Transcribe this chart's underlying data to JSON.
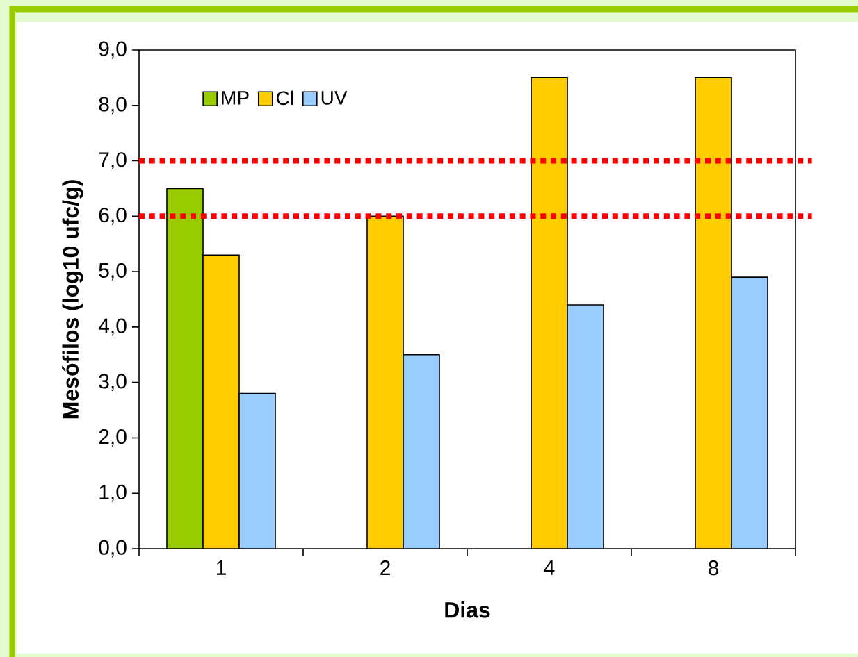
{
  "chart_data": {
    "type": "bar",
    "xlabel": "Dias",
    "ylabel": "Mesófilos (log10 ufc/g)",
    "categories": [
      "1",
      "2",
      "4",
      "8"
    ],
    "series": [
      {
        "name": "MP",
        "color": "#99cc00",
        "values": [
          6.5,
          null,
          null,
          null
        ]
      },
      {
        "name": "Cl",
        "color": "#ffcc00",
        "values": [
          5.3,
          6.0,
          8.5,
          8.5
        ]
      },
      {
        "name": "UV",
        "color": "#99ccff",
        "values": [
          2.8,
          3.5,
          4.4,
          4.9
        ]
      }
    ],
    "ylim": [
      0,
      9
    ],
    "yticks": [
      {
        "value": 0,
        "label": "0,0"
      },
      {
        "value": 1,
        "label": "1,0"
      },
      {
        "value": 2,
        "label": "2,0"
      },
      {
        "value": 3,
        "label": "3,0"
      },
      {
        "value": 4,
        "label": "4,0"
      },
      {
        "value": 5,
        "label": "5,0"
      },
      {
        "value": 6,
        "label": "6,0"
      },
      {
        "value": 7,
        "label": "7,0"
      },
      {
        "value": 8,
        "label": "8,0"
      },
      {
        "value": 9,
        "label": "9,0"
      }
    ],
    "legend": "top left",
    "ref_lines": [
      {
        "axis": "y",
        "value": 7,
        "color": "#ff0000",
        "line_style": "dotted"
      },
      {
        "axis": "y",
        "value": 6,
        "color": "#ff0000",
        "line_style": "dotted"
      }
    ]
  }
}
